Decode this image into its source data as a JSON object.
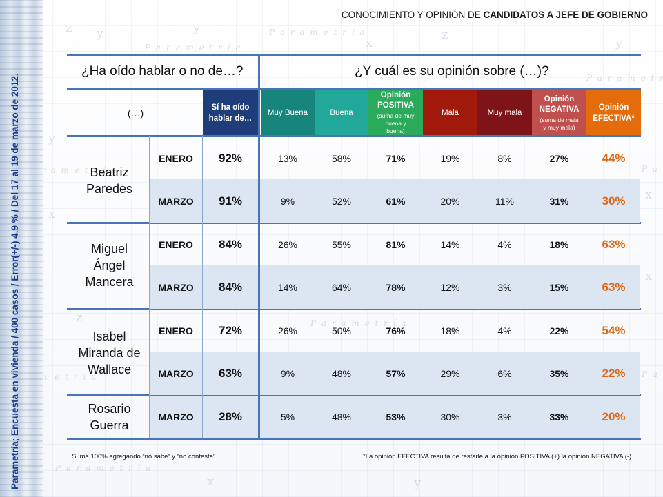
{
  "side_text": "Parametría; Encuesta en vivienda / 400 casos / Error(+/-) 4.9 % / Del 17 al 19 de marzo de 2012.",
  "title_prefix": "CONOCIMIENTO Y OPINIÓN DE ",
  "title_bold": "CANDIDATOS A JEFE DE GOBIERNO",
  "question_left": "¿Ha oído hablar o no de…?",
  "question_right": "¿Y cuál es su opinión sobre (…)?",
  "header": {
    "name_col": "(…)",
    "si_ha_oido": "Sí ha oído hablar de…",
    "muy_buena": "Muy Buena",
    "buena": "Buena",
    "positiva_title": "Opinión POSITIVA",
    "positiva_note": "(suma de muy buena y buena)",
    "mala": "Mala",
    "muy_mala": "Muy mala",
    "negativa_title": "Opinión NEGATIVA",
    "negativa_note": "(suma de mala y muy mala)",
    "efectiva": "Opinión EFECTIVA*"
  },
  "colors": {
    "si_ha_oido": "#1f3d7a",
    "muy_buena": "#17857c",
    "buena": "#22a89b",
    "positiva": "#2aaa5a",
    "mala": "#a11a0c",
    "muy_mala": "#7e1418",
    "negativa": "#c0504d",
    "efectiva": "#e46c0a",
    "rule": "#4a74b8",
    "row_shade": "#dce6f2"
  },
  "candidates": [
    {
      "name": "Beatriz Paredes",
      "rows": [
        {
          "mes": "ENERO",
          "si": "92%",
          "mb": "13%",
          "b": "58%",
          "pos": "71%",
          "m": "19%",
          "mm": "8%",
          "neg": "27%",
          "ef": "44%"
        },
        {
          "mes": "MARZO",
          "si": "91%",
          "mb": "9%",
          "b": "52%",
          "pos": "61%",
          "m": "20%",
          "mm": "11%",
          "neg": "31%",
          "ef": "30%"
        }
      ]
    },
    {
      "name": "Miguel Ángel Mancera",
      "rows": [
        {
          "mes": "ENERO",
          "si": "84%",
          "mb": "26%",
          "b": "55%",
          "pos": "81%",
          "m": "14%",
          "mm": "4%",
          "neg": "18%",
          "ef": "63%"
        },
        {
          "mes": "MARZO",
          "si": "84%",
          "mb": "14%",
          "b": "64%",
          "pos": "78%",
          "m": "12%",
          "mm": "3%",
          "neg": "15%",
          "ef": "63%"
        }
      ]
    },
    {
      "name": "Isabel Miranda de Wallace",
      "rows": [
        {
          "mes": "ENERO",
          "si": "72%",
          "mb": "26%",
          "b": "50%",
          "pos": "76%",
          "m": "18%",
          "mm": "4%",
          "neg": "22%",
          "ef": "54%"
        },
        {
          "mes": "MARZO",
          "si": "63%",
          "mb": "9%",
          "b": "48%",
          "pos": "57%",
          "m": "29%",
          "mm": "6%",
          "neg": "35%",
          "ef": "22%"
        }
      ]
    },
    {
      "name": "Rosario Guerra",
      "rows": [
        {
          "mes": "MARZO",
          "si": "28%",
          "mb": "5%",
          "b": "48%",
          "pos": "53%",
          "m": "30%",
          "mm": "3%",
          "neg": "33%",
          "ef": "20%"
        }
      ]
    }
  ],
  "footnote_left": "Suma 100%  agregando “no sabe” y “no contesta”.",
  "footnote_right": "*La opinión EFECTIVA resulta de restarle a la opinión POSITIVA (+) la opinión NEGATIVA (-)."
}
